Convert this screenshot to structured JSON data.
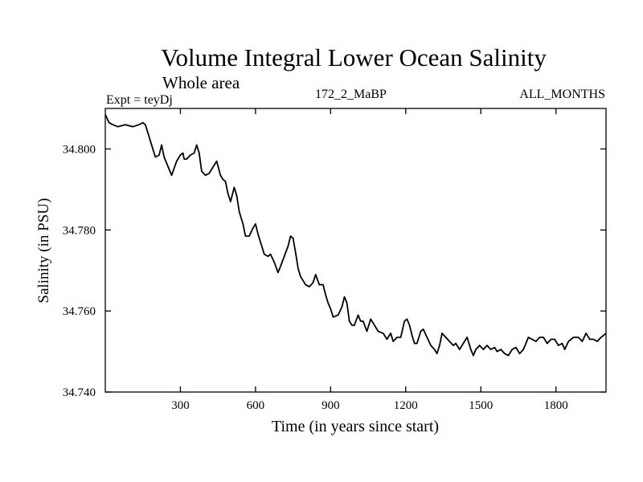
{
  "chart_data": {
    "type": "line",
    "title": "Volume Integral Lower Ocean Salinity",
    "subtitle": "Whole area",
    "annotations": {
      "left": "Expt = teyDj",
      "center": "172_2_MaBP",
      "right": "ALL_MONTHS"
    },
    "xlabel": "Time (in years since start)",
    "ylabel": "Salinity (in PSU)",
    "xlim": [
      0,
      2000
    ],
    "ylim": [
      34.74,
      34.81
    ],
    "xticks": [
      300,
      600,
      900,
      1200,
      1500,
      1800
    ],
    "xtick_labels": [
      "300",
      "600",
      "900",
      "1200",
      "1500",
      "1800"
    ],
    "yticks": [
      34.74,
      34.76,
      34.78,
      34.8
    ],
    "ytick_labels": [
      "34.740",
      "34.760",
      "34.780",
      "34.800"
    ],
    "grid": false,
    "series": [
      {
        "name": "Salinity",
        "x": [
          0,
          15,
          30,
          50,
          80,
          110,
          135,
          150,
          160,
          170,
          185,
          200,
          215,
          225,
          235,
          255,
          265,
          285,
          300,
          310,
          315,
          325,
          340,
          355,
          365,
          375,
          385,
          400,
          415,
          430,
          445,
          460,
          470,
          480,
          490,
          500,
          515,
          525,
          535,
          550,
          560,
          575,
          590,
          600,
          610,
          625,
          635,
          650,
          660,
          675,
          690,
          700,
          715,
          730,
          740,
          750,
          760,
          770,
          780,
          790,
          800,
          815,
          830,
          840,
          855,
          870,
          880,
          890,
          900,
          910,
          930,
          945,
          955,
          965,
          975,
          985,
          995,
          1010,
          1020,
          1030,
          1045,
          1060,
          1075,
          1090,
          1110,
          1125,
          1140,
          1150,
          1165,
          1180,
          1195,
          1205,
          1215,
          1225,
          1235,
          1245,
          1260,
          1270,
          1285,
          1300,
          1315,
          1325,
          1335,
          1345,
          1360,
          1375,
          1390,
          1400,
          1415,
          1430,
          1445,
          1460,
          1470,
          1480,
          1495,
          1510,
          1525,
          1540,
          1555,
          1565,
          1580,
          1595,
          1610,
          1625,
          1640,
          1655,
          1670,
          1680,
          1690,
          1705,
          1720,
          1735,
          1750,
          1765,
          1780,
          1795,
          1810,
          1825,
          1835,
          1850,
          1870,
          1890,
          1905,
          1920,
          1935,
          1950,
          1965,
          1980,
          2000
        ],
        "y": [
          34.8085,
          34.8065,
          34.806,
          34.8055,
          34.806,
          34.8055,
          34.806,
          34.8065,
          34.806,
          34.804,
          34.801,
          34.798,
          34.7985,
          34.801,
          34.798,
          34.795,
          34.7935,
          34.797,
          34.7985,
          34.799,
          34.7975,
          34.7975,
          34.7985,
          34.799,
          34.801,
          34.799,
          34.7945,
          34.7935,
          34.794,
          34.7955,
          34.797,
          34.7935,
          34.7925,
          34.792,
          34.789,
          34.787,
          34.7905,
          34.7885,
          34.7845,
          34.7815,
          34.7785,
          34.7785,
          34.7805,
          34.7815,
          34.779,
          34.776,
          34.774,
          34.7735,
          34.774,
          34.772,
          34.7695,
          34.771,
          34.7735,
          34.776,
          34.7785,
          34.778,
          34.7745,
          34.7705,
          34.7685,
          34.7675,
          34.7665,
          34.766,
          34.767,
          34.769,
          34.7665,
          34.7665,
          34.764,
          34.762,
          34.7605,
          34.7585,
          34.759,
          34.761,
          34.7635,
          34.762,
          34.7575,
          34.7565,
          34.7565,
          34.759,
          34.7575,
          34.7575,
          34.755,
          34.758,
          34.7565,
          34.755,
          34.7545,
          34.753,
          34.7545,
          34.7525,
          34.7535,
          34.7535,
          34.7575,
          34.758,
          34.7565,
          34.754,
          34.752,
          34.752,
          34.755,
          34.7555,
          34.7535,
          34.7515,
          34.7505,
          34.7495,
          34.7515,
          34.7545,
          34.7535,
          34.7525,
          34.7515,
          34.752,
          34.7505,
          34.752,
          34.7535,
          34.7505,
          34.749,
          34.7505,
          34.7515,
          34.7505,
          34.7515,
          34.7505,
          34.751,
          34.75,
          34.7505,
          34.7495,
          34.749,
          34.7505,
          34.751,
          34.7495,
          34.7505,
          34.752,
          34.7535,
          34.753,
          34.7525,
          34.7535,
          34.7535,
          34.752,
          34.753,
          34.753,
          34.7515,
          34.752,
          34.7505,
          34.7525,
          34.7535,
          34.7535,
          34.7525,
          34.7545,
          34.753,
          34.753,
          34.7525,
          34.7535,
          34.7545
        ]
      }
    ]
  }
}
